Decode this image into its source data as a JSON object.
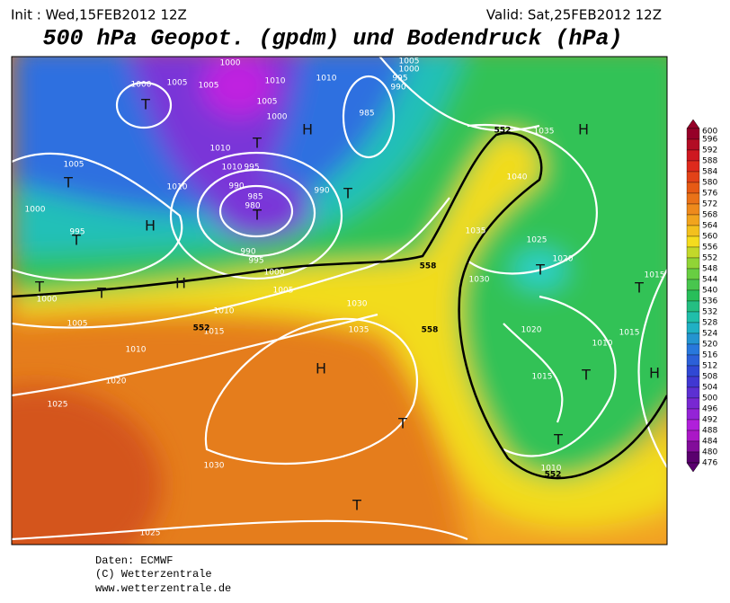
{
  "header": {
    "init": "Init : Wed,15FEB2012 12Z",
    "valid": "Valid: Sat,25FEB2012 12Z",
    "title": "500 hPa Geopot. (gpdm) und Bodendruck (hPa)"
  },
  "colorbar": {
    "labels": [
      600,
      596,
      592,
      588,
      584,
      580,
      576,
      572,
      568,
      564,
      560,
      556,
      552,
      548,
      544,
      540,
      536,
      532,
      528,
      524,
      520,
      516,
      512,
      508,
      504,
      500,
      496,
      492,
      488,
      484,
      480,
      476
    ]
  },
  "map": {
    "isobar_labels": [
      "1000",
      "1005",
      "1005",
      "1000",
      "1010",
      "1010",
      "1005",
      "1000",
      "1005",
      "1000",
      "995",
      "990",
      "985",
      "1010",
      "1010",
      "995",
      "990",
      "985",
      "980",
      "990",
      "990",
      "995",
      "1000",
      "1005",
      "1010",
      "1015",
      "1005",
      "1010",
      "1000",
      "995",
      "1000",
      "1005",
      "1010",
      "1020",
      "1025",
      "1030",
      "1025",
      "1030",
      "1035",
      "1035",
      "1030",
      "1025",
      "1020",
      "1020",
      "1010",
      "1015",
      "1015",
      "1015",
      "1010",
      "1035",
      "1040",
      "552",
      "558",
      "558",
      "552",
      "552"
    ],
    "pressure_centers": [
      "T",
      "T",
      "H",
      "T",
      "T",
      "H",
      "T",
      "T",
      "H",
      "T",
      "T",
      "H",
      "T",
      "T",
      "H",
      "T",
      "T",
      "H",
      "T",
      "T"
    ]
  },
  "footer": {
    "source": "Daten: ECMWF",
    "copyright": "(C) Wetterzentrale",
    "url": "www.wetterzentrale.de"
  }
}
